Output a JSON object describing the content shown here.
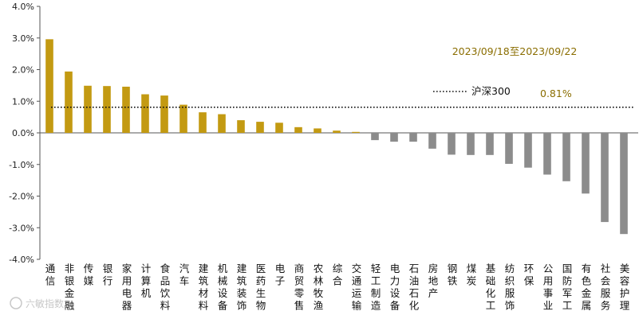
{
  "chart_data": {
    "type": "bar",
    "title": "",
    "xlabel": "",
    "ylabel": "",
    "ylim": [
      -4.0,
      4.0
    ],
    "yticks": [
      "4.0%",
      "3.0%",
      "2.0%",
      "1.0%",
      "0.0%",
      "-1.0%",
      "-2.0%",
      "-3.0%",
      "-4.0%"
    ],
    "categories": [
      "通信",
      "非银金融",
      "传媒",
      "银行",
      "家用电器",
      "计算机",
      "食品饮料",
      "汽车",
      "建筑材料",
      "机械设备",
      "建筑装饰",
      "医药生物",
      "电子",
      "商贸零售",
      "农林牧渔",
      "综合",
      "交通运输",
      "轻工制造",
      "电力设备",
      "石油石化",
      "房地产",
      "钢铁",
      "煤炭",
      "基础化工",
      "纺织服饰",
      "环保",
      "公用事业",
      "国防军工",
      "有色金属",
      "社会服务",
      "美容护理"
    ],
    "values": [
      2.96,
      1.94,
      1.49,
      1.48,
      1.46,
      1.22,
      1.18,
      0.89,
      0.65,
      0.59,
      0.4,
      0.35,
      0.32,
      0.18,
      0.14,
      0.07,
      0.03,
      -0.23,
      -0.28,
      -0.28,
      -0.5,
      -0.69,
      -0.7,
      -0.7,
      -0.98,
      -1.1,
      -1.32,
      -1.53,
      -1.92,
      -2.82,
      -3.2
    ],
    "positive_color": "#c39a12",
    "negative_color": "#8c8c8c",
    "reference": {
      "label": "沪深300",
      "value": 0.81,
      "value_text": "0.81%"
    },
    "date_range": "2023/09/18至2023/09/22",
    "legend_position": "right",
    "grid": false,
    "watermark": "六敏指数"
  }
}
